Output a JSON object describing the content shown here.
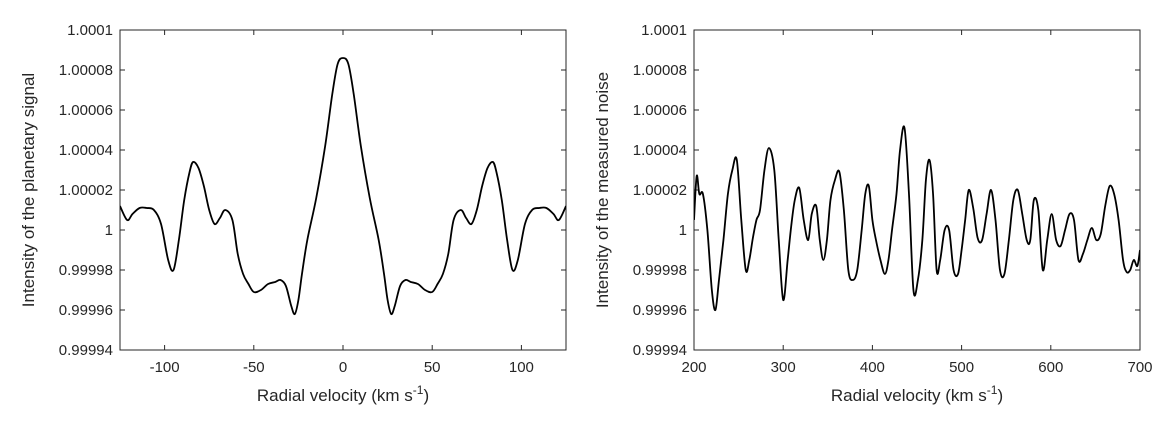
{
  "chart_data": [
    {
      "type": "line",
      "title": "",
      "xlabel": "Radial velocity (km s",
      "xlabel_sup": "-1",
      "xlabel_close": ")",
      "ylabel": "Intensity of the planetary signal",
      "xlim": [
        -125,
        125
      ],
      "ylim": [
        0.99994,
        1.0001
      ],
      "xticks": [
        -100,
        -50,
        0,
        50,
        100
      ],
      "xtick_labels": [
        "-100",
        "-50",
        "0",
        "50",
        "100"
      ],
      "yticks": [
        0.99994,
        0.99996,
        0.99998,
        1.0,
        1.00002,
        1.00004,
        1.00006,
        1.00008,
        1.0001
      ],
      "ytick_labels": [
        "0.99994",
        "0.99996",
        "0.99998",
        "1",
        "1.00002",
        "1.00004",
        "1.00006",
        "1.00008",
        "1.0001"
      ],
      "grid": false,
      "line_color": "#000000",
      "series": [
        {
          "x": [
            -125,
            -121,
            -118,
            -114,
            -110,
            -106,
            -102,
            -98,
            -95,
            -92,
            -89,
            -86,
            -84,
            -81,
            -78,
            -75,
            -72,
            -69,
            -66,
            -62,
            -59,
            -56,
            -53,
            -50,
            -46,
            -42,
            -38,
            -35,
            -32,
            -29,
            -27,
            -25,
            -23,
            -20,
            -15,
            -10,
            -6,
            -3,
            0,
            3,
            6,
            10,
            15,
            20,
            23,
            25,
            27,
            29,
            32,
            35,
            38,
            42,
            46,
            50,
            53,
            56,
            59,
            62,
            66,
            69,
            72,
            75,
            78,
            81,
            84,
            86,
            89,
            92,
            95,
            98,
            102,
            106,
            110,
            114,
            118,
            121,
            125
          ],
          "y": [
            1.000012,
            1.000005,
            1.000008,
            1.000011,
            1.000011,
            1.00001,
            1.000003,
            0.999985,
            0.99998,
            0.999995,
            1.000015,
            1.000029,
            1.000034,
            1.000031,
            1.000022,
            1.00001,
            1.000003,
            1.000006,
            1.00001,
            1.000005,
            0.999988,
            0.999978,
            0.999973,
            0.999969,
            0.99997,
            0.999973,
            0.999974,
            0.999975,
            0.999972,
            0.999962,
            0.999958,
            0.999965,
            0.999978,
            0.999995,
            1.000016,
            1.000042,
            1.000068,
            1.000083,
            1.000086,
            1.000083,
            1.000068,
            1.000042,
            1.000016,
            0.999995,
            0.999978,
            0.999965,
            0.999958,
            0.999962,
            0.999972,
            0.999975,
            0.999974,
            0.999973,
            0.99997,
            0.999969,
            0.999973,
            0.999978,
            0.999988,
            1.000005,
            1.00001,
            1.000006,
            1.000003,
            1.00001,
            1.000022,
            1.000031,
            1.000034,
            1.000029,
            1.000015,
            0.999995,
            0.99998,
            0.999985,
            1.000003,
            1.00001,
            1.000011,
            1.000011,
            1.000008,
            1.000005,
            1.000012
          ]
        }
      ]
    },
    {
      "type": "line",
      "title": "",
      "xlabel": "Radial velocity (km s",
      "xlabel_sup": "-1",
      "xlabel_close": ")",
      "ylabel": "Intensity of the measured noise",
      "xlim": [
        200,
        700
      ],
      "ylim": [
        0.99994,
        1.0001
      ],
      "xticks": [
        200,
        300,
        400,
        500,
        600,
        700
      ],
      "xtick_labels": [
        "200",
        "300",
        "400",
        "500",
        "600",
        "700"
      ],
      "yticks": [
        0.99994,
        0.99996,
        0.99998,
        1.0,
        1.00002,
        1.00004,
        1.00006,
        1.00008,
        1.0001
      ],
      "ytick_labels": [
        "0.99994",
        "0.99996",
        "0.99998",
        "1",
        "1.00002",
        "1.00004",
        "1.00006",
        "1.00008",
        "1.0001"
      ],
      "grid": false,
      "line_color": "#000000",
      "series": [
        {
          "x": [
            200,
            203,
            206,
            210,
            215,
            220,
            224,
            228,
            233,
            238,
            243,
            248,
            253,
            258,
            262,
            266,
            270,
            274,
            279,
            284,
            290,
            295,
            300,
            305,
            309,
            313,
            318,
            323,
            328,
            332,
            337,
            341,
            345,
            349,
            353,
            358,
            363,
            368,
            373,
            378,
            383,
            388,
            392,
            396,
            400,
            404,
            409,
            414,
            418,
            422,
            427,
            431,
            436,
            441,
            446,
            451,
            456,
            460,
            464,
            468,
            472,
            476,
            481,
            486,
            491,
            496,
            500,
            504,
            508,
            513,
            518,
            523,
            528,
            533,
            538,
            543,
            548,
            553,
            558,
            563,
            568,
            573,
            577,
            581,
            586,
            591,
            596,
            601,
            606,
            611,
            616,
            621,
            626,
            631,
            636,
            641,
            646,
            651,
            656,
            661,
            666,
            671,
            676,
            681,
            685,
            689,
            693,
            697,
            700
          ],
          "y": [
            1.000005,
            1.000027,
            1.000018,
            1.000018,
            1.0,
            0.99997,
            0.99996,
            0.999975,
            0.999995,
            1.000018,
            1.00003,
            1.000035,
            1.000005,
            0.99998,
            0.999985,
            0.999996,
            1.000005,
            1.00001,
            1.00003,
            1.000041,
            1.00003,
            0.999995,
            0.999965,
            0.999985,
            1.000002,
            1.000015,
            1.000021,
            1.000005,
            0.999995,
            1.000008,
            1.000012,
            0.999995,
            0.999985,
            0.999995,
            1.000015,
            1.000025,
            1.000029,
            1.00001,
            0.99998,
            0.999975,
            0.99998,
            1.0,
            1.000018,
            1.000022,
            1.000005,
            0.999995,
            0.999985,
            0.999978,
            0.999985,
            1.0,
            1.000018,
            1.00004,
            1.000051,
            1.000018,
            0.99997,
            0.999975,
            0.999995,
            1.000025,
            1.000035,
            1.000018,
            0.99998,
            0.999985,
            1.0,
            1.0,
            0.99998,
            0.999978,
            0.99999,
            1.000005,
            1.00002,
            1.000011,
            0.999996,
            0.999995,
            1.000008,
            1.00002,
            1.000005,
            0.99998,
            0.999978,
            0.999995,
            1.000015,
            1.00002,
            1.000008,
            0.999995,
            0.999995,
            1.000015,
            1.00001,
            0.99998,
            0.999995,
            1.000008,
            0.999995,
            0.999992,
            1.0,
            1.000008,
            1.000005,
            0.999985,
            0.999988,
            0.999995,
            1.000001,
            0.999995,
            0.999998,
            1.000012,
            1.000022,
            1.000018,
            1.000005,
            0.999985,
            0.999979,
            0.99998,
            0.999985,
            0.999982,
            0.99999
          ]
        }
      ]
    }
  ]
}
